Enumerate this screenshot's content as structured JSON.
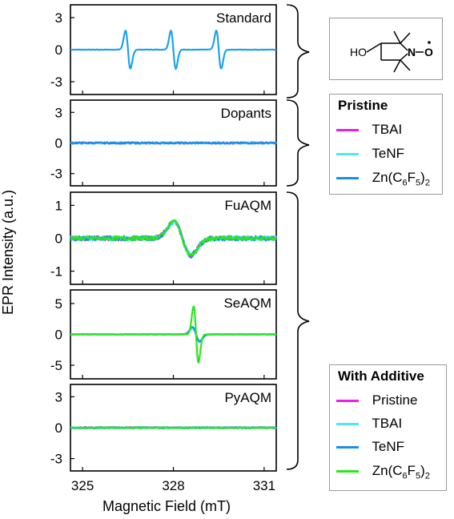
{
  "chart_data": [
    {
      "type": "line",
      "panel_label": "Standard",
      "yticks": [
        3,
        0,
        -3
      ],
      "ylim": [
        -4.2,
        4.2
      ],
      "series": [
        {
          "name": "Standard",
          "color": "#1ea2f0",
          "lines": [
            {
              "center": 326.5,
              "amp": 1.8
            },
            {
              "center": 328.0,
              "amp": 1.8
            },
            {
              "center": 329.5,
              "amp": 1.8
            }
          ],
          "noise": 0.02
        }
      ]
    },
    {
      "type": "line",
      "panel_label": "Dopants",
      "yticks": [
        3,
        0,
        -3
      ],
      "ylim": [
        -4.2,
        4.2
      ],
      "series": [
        {
          "name": "TBAI",
          "color": "#ee1fe4",
          "lines": [],
          "noise": 0.08
        },
        {
          "name": "TeNF",
          "color": "#4ee6fa",
          "lines": [],
          "noise": 0.08
        },
        {
          "name": "Zn(C6F5)2",
          "color": "#1c8ee8",
          "lines": [],
          "noise": 0.08
        }
      ]
    },
    {
      "type": "line",
      "panel_label": "FuAQM",
      "yticks": [
        1,
        0,
        -1
      ],
      "ylim": [
        -1.4,
        1.4
      ],
      "series": [
        {
          "name": "Pristine",
          "color": "#ee1fe4",
          "lines": [
            {
              "center": 328.3,
              "amp": 0.52,
              "width": 0.28
            }
          ],
          "noise": 0.07
        },
        {
          "name": "TBAI",
          "color": "#4ee6fa",
          "lines": [
            {
              "center": 328.3,
              "amp": 0.5,
              "width": 0.28
            }
          ],
          "noise": 0.07
        },
        {
          "name": "TeNF",
          "color": "#1c8ee8",
          "lines": [
            {
              "center": 328.3,
              "amp": 0.5,
              "width": 0.28
            }
          ],
          "noise": 0.07
        },
        {
          "name": "Zn(C6F5)2",
          "color": "#28e81c",
          "lines": [
            {
              "center": 328.3,
              "amp": 0.52,
              "width": 0.28
            }
          ],
          "noise": 0.06
        }
      ]
    },
    {
      "type": "line",
      "panel_label": "SeAQM",
      "yticks": [
        5,
        0,
        -5
      ],
      "ylim": [
        -7.2,
        7.2
      ],
      "series": [
        {
          "name": "Pristine",
          "color": "#ee1fe4",
          "lines": [
            {
              "center": 328.75,
              "amp": 1.0,
              "width": 0.12
            }
          ],
          "noise": 0.03
        },
        {
          "name": "TBAI",
          "color": "#4ee6fa",
          "lines": [
            {
              "center": 328.75,
              "amp": 1.0,
              "width": 0.12
            }
          ],
          "noise": 0.03
        },
        {
          "name": "TeNF",
          "color": "#1c8ee8",
          "lines": [
            {
              "center": 328.75,
              "amp": 1.2,
              "width": 0.12
            }
          ],
          "noise": 0.03
        },
        {
          "name": "Zn(C6F5)2",
          "color": "#28e81c",
          "lines": [
            {
              "center": 328.75,
              "amp": 4.6,
              "width": 0.08
            }
          ],
          "noise": 0.03
        }
      ]
    },
    {
      "type": "line",
      "panel_label": "PyAQM",
      "yticks": [
        3,
        0,
        -3
      ],
      "ylim": [
        -4.2,
        4.2
      ],
      "series": [
        {
          "name": "Pristine",
          "color": "#ee1fe4",
          "lines": [],
          "noise": 0.06
        },
        {
          "name": "TBAI",
          "color": "#4ee6fa",
          "lines": [],
          "noise": 0.06
        },
        {
          "name": "TeNF",
          "color": "#1c8ee8",
          "lines": [],
          "noise": 0.06
        },
        {
          "name": "Zn(C6F5)2",
          "color": "#28e81c",
          "lines": [],
          "noise": 0.06
        }
      ]
    }
  ],
  "axes": {
    "xlabel": "Magnetic Field (mT)",
    "ylabel": "EPR Intensity (a.u.)",
    "xticks": [
      325,
      328,
      331
    ],
    "xlim": [
      324.6,
      331.4
    ]
  },
  "structure": {
    "ho_label": "HO",
    "n_label": "N",
    "o_label": "O"
  },
  "legend_pristine": {
    "title": "Pristine",
    "items": [
      {
        "label": "TBAI",
        "color": "#ee1fe4"
      },
      {
        "label": "TeNF",
        "color": "#4ee6fa"
      },
      {
        "label": "Zn(C6F5)2",
        "color": "#1c8ee8"
      }
    ]
  },
  "legend_additive": {
    "title": "With Additive",
    "items": [
      {
        "label": "Pristine",
        "color": "#ee1fe4"
      },
      {
        "label": "TBAI",
        "color": "#4ee6fa"
      },
      {
        "label": "TeNF",
        "color": "#1c8ee8"
      },
      {
        "label": "Zn(C6F5)2",
        "color": "#28e81c"
      }
    ]
  }
}
